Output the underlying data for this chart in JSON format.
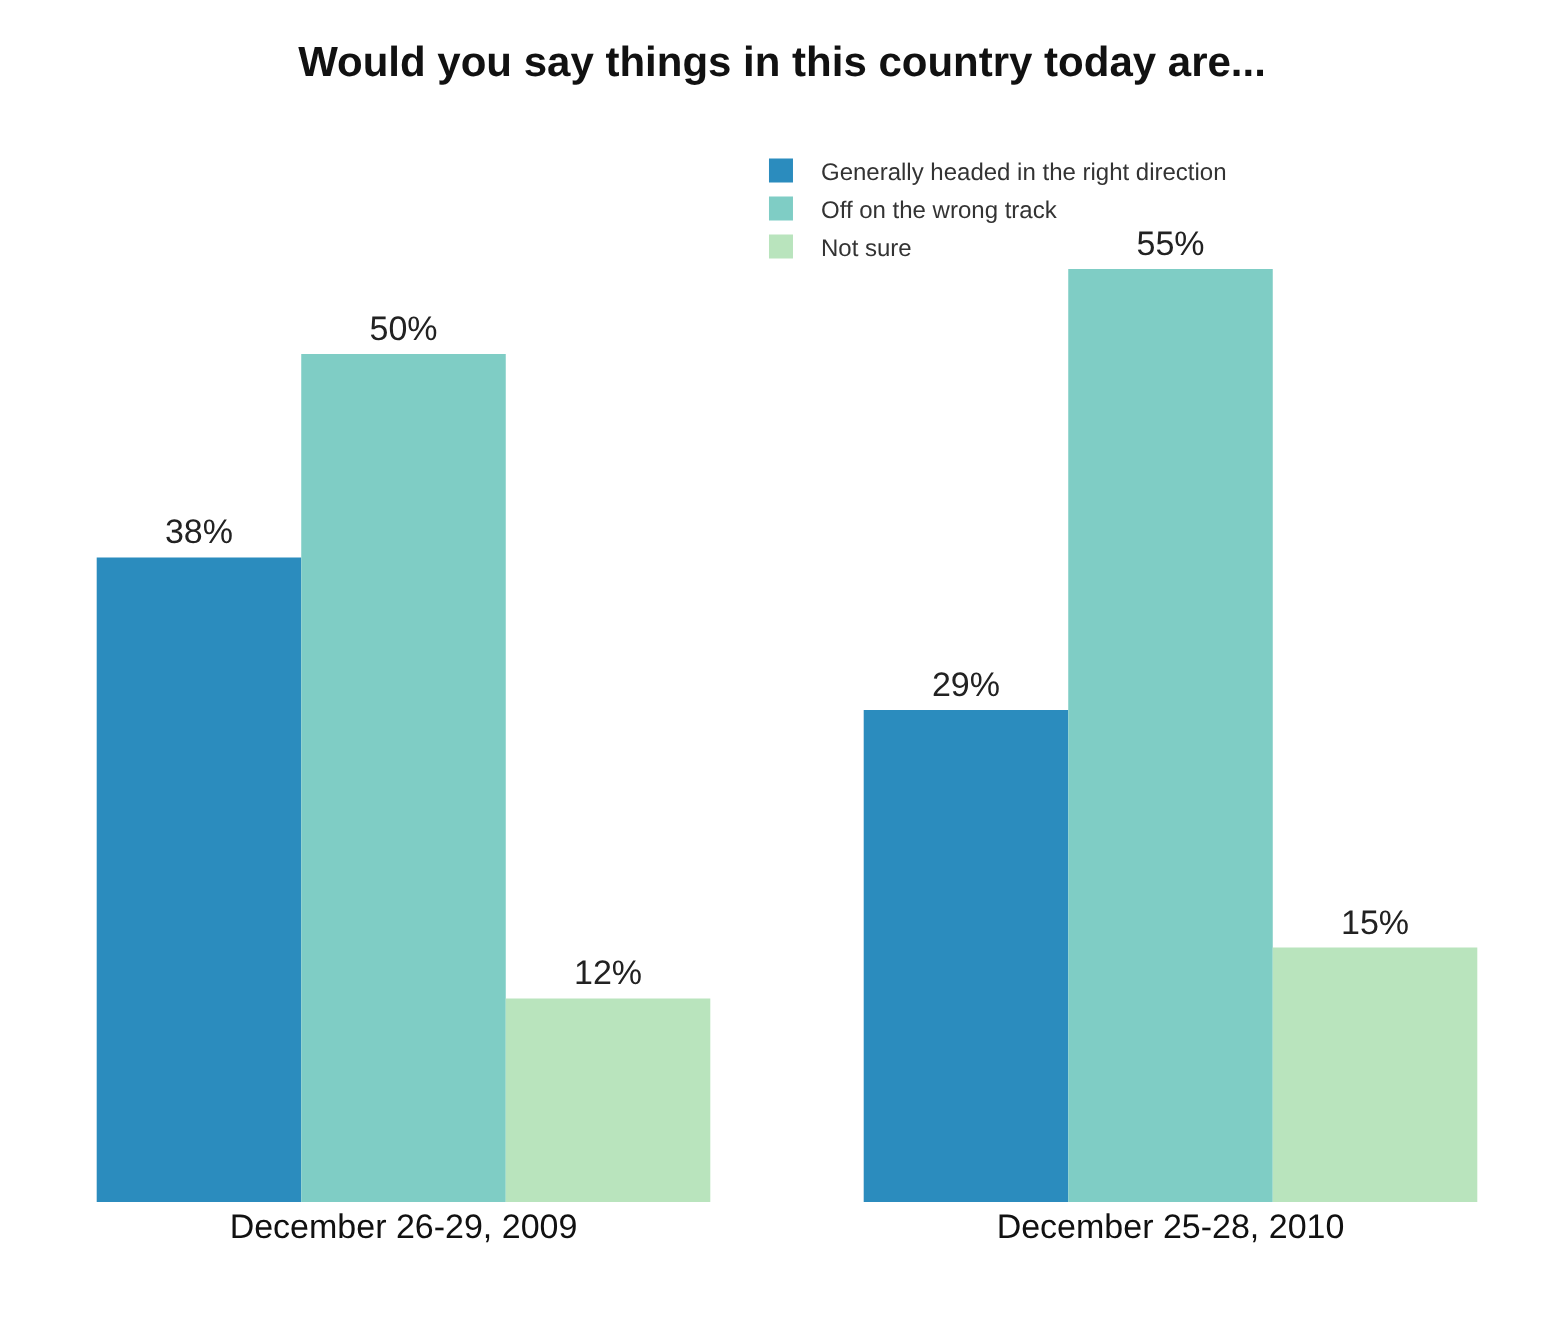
{
  "chart_data": {
    "type": "bar",
    "title": "Would you say things in this country today are...",
    "categories": [
      "December 26-29, 2009",
      "December 25-28, 2010"
    ],
    "series": [
      {
        "name": "Generally headed in the right direction",
        "color": "#2b8cbe",
        "values": [
          38,
          29
        ],
        "value_labels": [
          "38%",
          "29%"
        ]
      },
      {
        "name": "Off on the wrong track",
        "color": "#7fcdc5",
        "values": [
          50,
          55
        ],
        "value_labels": [
          "50%",
          "55%"
        ]
      },
      {
        "name": "Not sure",
        "color": "#b9e4bd",
        "values": [
          12,
          15
        ],
        "value_labels": [
          "12%",
          "15%"
        ]
      }
    ],
    "legend": "top right"
  }
}
